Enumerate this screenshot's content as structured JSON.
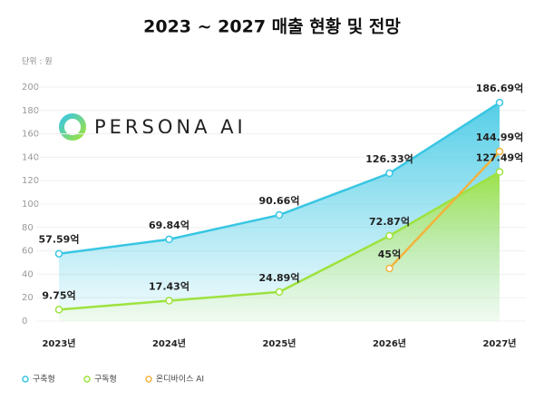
{
  "chart_data": {
    "type": "line",
    "title": "2023 ~ 2027 매출 현황 및 전망",
    "unit_label": "단위 : 원",
    "logo_text": "PERSONA AI",
    "categories": [
      "2023년",
      "2024년",
      "2025년",
      "2026년",
      "2027년"
    ],
    "series": [
      {
        "name": "구축형",
        "color": "#38c6e3",
        "area": true,
        "values": [
          57.59,
          69.84,
          90.66,
          126.33,
          186.69
        ],
        "value_labels": [
          "57.59억",
          "69.84억",
          "90.66억",
          "126.33억",
          "186.69억"
        ]
      },
      {
        "name": "구독형",
        "color": "#9ee23f",
        "area": true,
        "values": [
          9.75,
          17.43,
          24.89,
          72.87,
          127.49
        ],
        "value_labels": [
          "9.75억",
          "17.43억",
          "24.89억",
          "72.87억",
          "127.49억"
        ]
      },
      {
        "name": "온디바이스 AI",
        "color": "#f2b33d",
        "area": false,
        "values": [
          null,
          null,
          null,
          45,
          144.99
        ],
        "value_labels": [
          null,
          null,
          null,
          "45억",
          "144.99억"
        ]
      }
    ],
    "ylim": [
      0,
      200
    ],
    "yticks": [
      0,
      20,
      40,
      60,
      80,
      100,
      120,
      140,
      160,
      180,
      200
    ],
    "grid": true
  }
}
